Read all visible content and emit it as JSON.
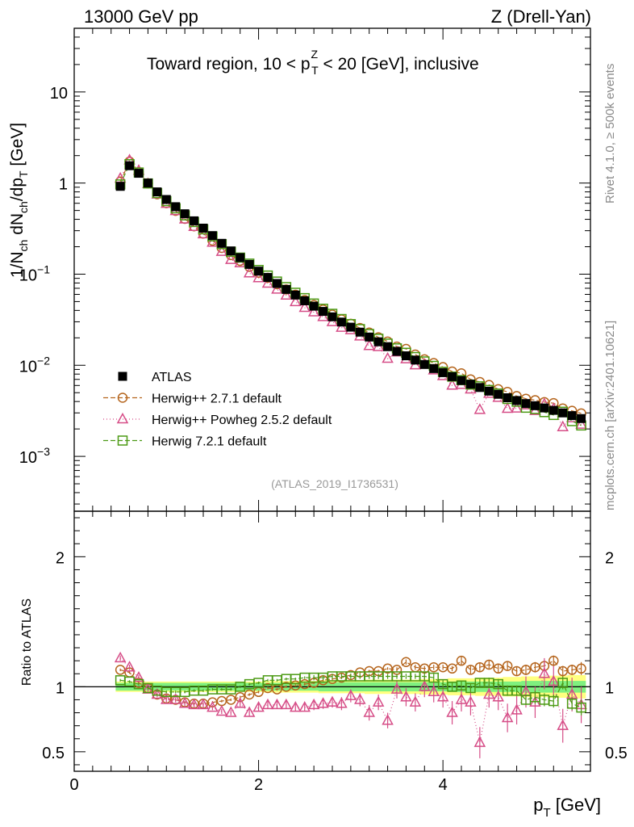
{
  "header": {
    "left_label": "13000 GeV pp",
    "right_label": "Z (Drell-Yan)"
  },
  "side_labels": {
    "rivet": "Rivet 4.1.0, ≥ 500k events",
    "mcplots": "mcplots.cern.ch [arXiv:2401.10621]"
  },
  "colors": {
    "atlas": "#000000",
    "herwig271": "#b5651d",
    "powheg": "#d64d87",
    "herwig721": "#4c9a14",
    "band_inner": "#7ff07f",
    "band_outer": "#ffff80"
  },
  "chart_data": {
    "type": "scatter",
    "title_parts": {
      "pre": "Toward region, 10 < p",
      "sup": "Z",
      "sub": "T",
      "post": " < 20 [GeV], inclusive"
    },
    "watermark": "(ATLAS_2019_I1736531)",
    "xlabel": {
      "main": "p",
      "sub": "T",
      "unit": " [GeV]"
    },
    "ylabel": {
      "a": "1/N",
      "a_sub": "ch",
      "b": " dN",
      "b_sub": "ch",
      "c": "/dp",
      "c_sub": "T",
      "d": " [GeV]"
    },
    "ratio_ylabel": "Ratio to ATLAS",
    "xlim": [
      0,
      5.6
    ],
    "ylim": [
      0.00025,
      50
    ],
    "ratio_ylim": [
      0.35,
      2.35
    ],
    "x_ticks": [
      0,
      2,
      4
    ],
    "y_ticks": [
      {
        "v": 10,
        "base": "10",
        "exp": ""
      },
      {
        "v": 1,
        "base": "1",
        "exp": ""
      },
      {
        "v": 0.1,
        "base": "10",
        "exp": "−1"
      },
      {
        "v": 0.01,
        "base": "10",
        "exp": "−2"
      },
      {
        "v": 0.001,
        "base": "10",
        "exp": "−3"
      }
    ],
    "ratio_ticks": [
      {
        "v": 2,
        "label": "2"
      },
      {
        "v": 1,
        "label": "1"
      },
      {
        "v": 0.5,
        "label": "0.5"
      }
    ],
    "x": [
      0.5,
      0.6,
      0.7,
      0.8,
      0.9,
      1.0,
      1.1,
      1.2,
      1.3,
      1.4,
      1.5,
      1.6,
      1.7,
      1.8,
      1.9,
      2.0,
      2.1,
      2.2,
      2.3,
      2.4,
      2.5,
      2.6,
      2.7,
      2.8,
      2.9,
      3.0,
      3.1,
      3.2,
      3.3,
      3.4,
      3.5,
      3.6,
      3.7,
      3.8,
      3.9,
      4.0,
      4.1,
      4.2,
      4.3,
      4.4,
      4.5,
      4.6,
      4.7,
      4.8,
      4.9,
      5.0,
      5.1,
      5.2,
      5.3,
      5.4,
      5.5
    ],
    "atlas": [
      0.92,
      1.55,
      1.28,
      1.0,
      0.8,
      0.66,
      0.55,
      0.46,
      0.385,
      0.32,
      0.265,
      0.218,
      0.18,
      0.152,
      0.128,
      0.108,
      0.092,
      0.079,
      0.068,
      0.059,
      0.051,
      0.0445,
      0.039,
      0.034,
      0.0298,
      0.0262,
      0.0231,
      0.0204,
      0.0181,
      0.016,
      0.0142,
      0.0127,
      0.0114,
      0.0102,
      0.0092,
      0.0083,
      0.0075,
      0.0068,
      0.0062,
      0.0057,
      0.0052,
      0.0048,
      0.0044,
      0.0041,
      0.0038,
      0.0036,
      0.0034,
      0.0032,
      0.003,
      0.0028,
      0.0026
    ],
    "legend_position": "lower-left",
    "legend": [
      {
        "label": "ATLAS",
        "color": "atlas",
        "marker": "square-filled",
        "line": "none"
      },
      {
        "label": "Herwig++ 2.7.1 default",
        "color": "herwig271",
        "marker": "circle",
        "line": "dashed"
      },
      {
        "label": "Herwig++ Powheg 2.5.2 default",
        "color": "powheg",
        "marker": "triangle",
        "line": "dotted"
      },
      {
        "label": "Herwig 7.2.1 default",
        "color": "herwig721",
        "marker": "square",
        "line": "dashed"
      }
    ],
    "series": [
      {
        "name": "Herwig++ 2.7.1 default",
        "color": "herwig271",
        "marker": "circle",
        "dash": "6,3",
        "ratio": [
          1.13,
          1.11,
          1.03,
          0.99,
          0.94,
          0.91,
          0.9,
          0.88,
          0.87,
          0.87,
          0.88,
          0.89,
          0.9,
          0.92,
          0.94,
          0.96,
          0.99,
          0.98,
          1.0,
          1.01,
          1.02,
          1.03,
          1.05,
          1.06,
          1.07,
          1.09,
          1.11,
          1.12,
          1.12,
          1.14,
          1.13,
          1.19,
          1.15,
          1.14,
          1.15,
          1.15,
          1.14,
          1.2,
          1.13,
          1.15,
          1.17,
          1.14,
          1.16,
          1.12,
          1.13,
          1.15,
          1.16,
          1.2,
          1.12,
          1.13,
          1.14
        ],
        "err": [
          0.01,
          0.01,
          0.01,
          0.01,
          0.01,
          0.01,
          0.01,
          0.01,
          0.01,
          0.01,
          0.01,
          0.01,
          0.01,
          0.01,
          0.01,
          0.01,
          0.01,
          0.01,
          0.01,
          0.01,
          0.01,
          0.01,
          0.01,
          0.01,
          0.01,
          0.01,
          0.01,
          0.01,
          0.01,
          0.01,
          0.02,
          0.02,
          0.02,
          0.02,
          0.02,
          0.02,
          0.02,
          0.03,
          0.03,
          0.03,
          0.03,
          0.03,
          0.03,
          0.03,
          0.04,
          0.04,
          0.04,
          0.04,
          0.04,
          0.04,
          0.05
        ]
      },
      {
        "name": "Herwig++ Powheg 2.5.2 default",
        "color": "powheg",
        "marker": "triangle",
        "dash": "1,3",
        "ratio": [
          1.22,
          1.15,
          1.07,
          0.98,
          0.94,
          0.9,
          0.9,
          0.87,
          0.86,
          0.86,
          0.84,
          0.81,
          0.8,
          0.87,
          0.8,
          0.84,
          0.86,
          0.86,
          0.86,
          0.84,
          0.84,
          0.86,
          0.87,
          0.88,
          0.87,
          0.93,
          0.9,
          0.8,
          0.88,
          0.74,
          0.98,
          0.92,
          0.88,
          1.0,
          0.96,
          0.92,
          0.8,
          0.9,
          0.88,
          0.57,
          0.94,
          0.92,
          0.76,
          0.82,
          0.96,
          0.88,
          1.1,
          1.04,
          0.7,
          0.94,
          0.86
        ],
        "err": [
          0.02,
          0.02,
          0.02,
          0.02,
          0.02,
          0.02,
          0.02,
          0.02,
          0.02,
          0.02,
          0.02,
          0.02,
          0.02,
          0.03,
          0.03,
          0.03,
          0.03,
          0.03,
          0.03,
          0.03,
          0.03,
          0.04,
          0.04,
          0.04,
          0.05,
          0.05,
          0.05,
          0.06,
          0.06,
          0.06,
          0.07,
          0.07,
          0.07,
          0.08,
          0.08,
          0.08,
          0.09,
          0.09,
          0.1,
          0.12,
          0.1,
          0.1,
          0.11,
          0.11,
          0.12,
          0.12,
          0.12,
          0.12,
          0.13,
          0.13,
          0.14
        ]
      },
      {
        "name": "Herwig 7.2.1 default",
        "color": "herwig721",
        "marker": "square",
        "dash": "6,3",
        "ratio": [
          1.05,
          1.04,
          1.02,
          0.99,
          0.97,
          0.96,
          0.96,
          0.96,
          0.97,
          0.97,
          0.98,
          0.98,
          0.98,
          1.0,
          1.02,
          1.03,
          1.05,
          1.05,
          1.06,
          1.06,
          1.07,
          1.07,
          1.07,
          1.08,
          1.08,
          1.08,
          1.08,
          1.08,
          1.08,
          1.08,
          1.08,
          1.08,
          1.08,
          1.08,
          1.07,
          1.02,
          1.0,
          1.01,
          0.99,
          1.03,
          1.03,
          1.02,
          0.97,
          0.97,
          0.9,
          0.92,
          0.9,
          0.89,
          1.03,
          0.87,
          0.84
        ],
        "err": [
          0.01,
          0.01,
          0.01,
          0.01,
          0.01,
          0.01,
          0.01,
          0.01,
          0.01,
          0.01,
          0.01,
          0.01,
          0.01,
          0.01,
          0.01,
          0.01,
          0.01,
          0.01,
          0.01,
          0.01,
          0.01,
          0.02,
          0.02,
          0.02,
          0.02,
          0.02,
          0.02,
          0.02,
          0.02,
          0.02,
          0.02,
          0.02,
          0.02,
          0.03,
          0.03,
          0.03,
          0.03,
          0.03,
          0.03,
          0.03,
          0.04,
          0.04,
          0.04,
          0.04,
          0.04,
          0.05,
          0.05,
          0.05,
          0.05,
          0.05,
          0.06
        ]
      }
    ],
    "atlas_band": {
      "inner": [
        0.03,
        0.03,
        0.03,
        0.03,
        0.03,
        0.03,
        0.03,
        0.03,
        0.03,
        0.03,
        0.03,
        0.03,
        0.03,
        0.03,
        0.03,
        0.03,
        0.03,
        0.03,
        0.03,
        0.03,
        0.03,
        0.03,
        0.035,
        0.035,
        0.035,
        0.035,
        0.035,
        0.035,
        0.035,
        0.035,
        0.035,
        0.035,
        0.035,
        0.035,
        0.035,
        0.035,
        0.04,
        0.04,
        0.04,
        0.04,
        0.04,
        0.04,
        0.04,
        0.04,
        0.045,
        0.045,
        0.045,
        0.045,
        0.045,
        0.045,
        0.045
      ],
      "outer": [
        0.04,
        0.04,
        0.04,
        0.04,
        0.04,
        0.04,
        0.04,
        0.04,
        0.04,
        0.04,
        0.04,
        0.04,
        0.04,
        0.04,
        0.04,
        0.04,
        0.045,
        0.045,
        0.045,
        0.045,
        0.045,
        0.045,
        0.05,
        0.05,
        0.05,
        0.05,
        0.05,
        0.055,
        0.055,
        0.055,
        0.055,
        0.055,
        0.055,
        0.06,
        0.06,
        0.06,
        0.065,
        0.065,
        0.065,
        0.07,
        0.07,
        0.07,
        0.075,
        0.075,
        0.08,
        0.08,
        0.08,
        0.085,
        0.085,
        0.09,
        0.09
      ]
    }
  }
}
